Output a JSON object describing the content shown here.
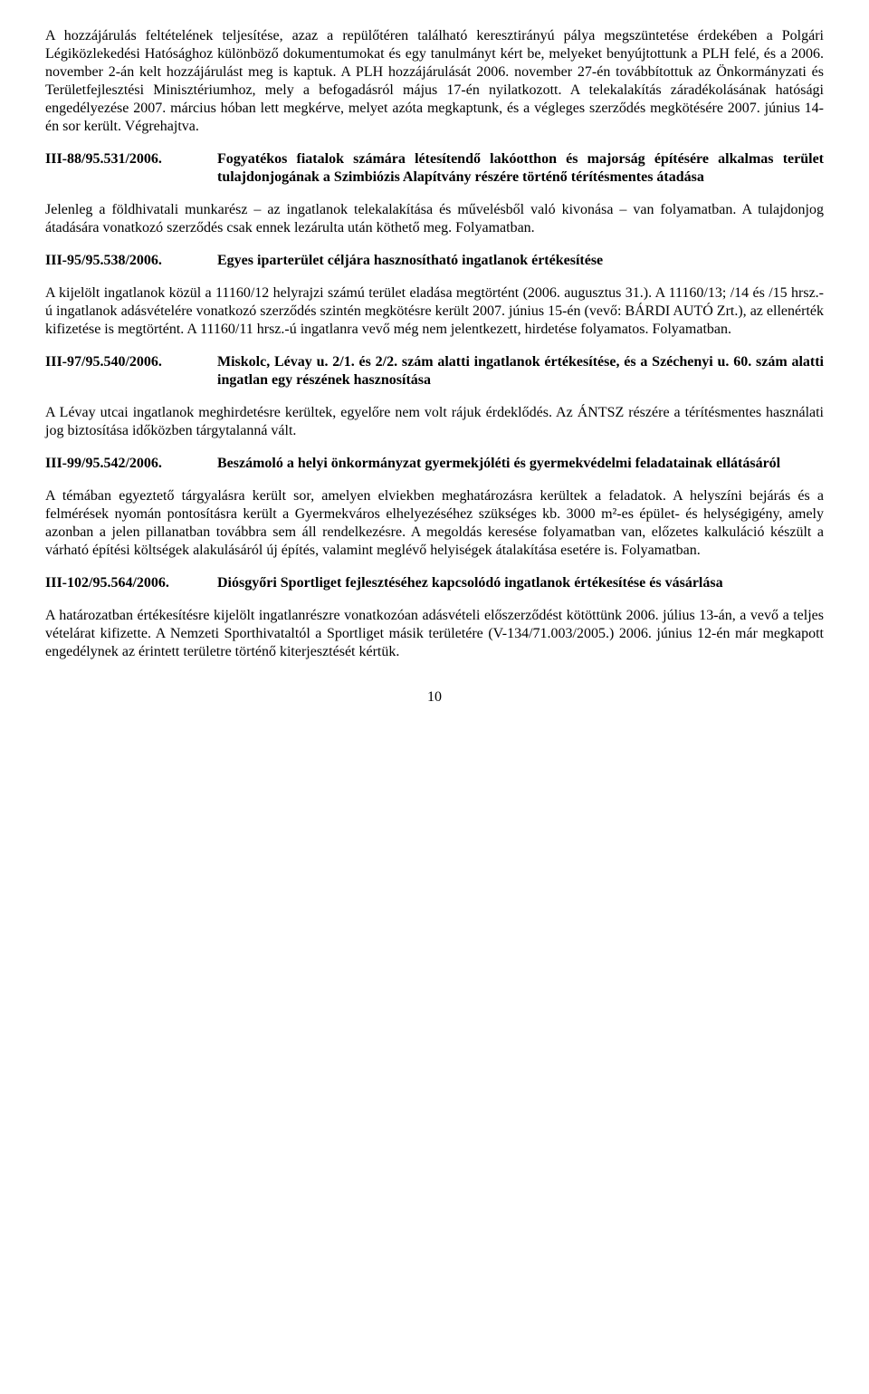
{
  "intro": "A hozzájárulás feltételének teljesítése, azaz a repülőtéren található keresztirányú pálya megszüntetése érdekében a Polgári Légiközlekedési Hatósághoz különböző dokumentumokat és egy tanulmányt kért be, melyeket benyújtottunk a PLH felé, és a 2006. november 2-án kelt hozzájárulást meg is kaptuk. A PLH hozzájárulását 2006. november 27-én továbbítottuk az Önkormányzati és Területfejlesztési Minisztériumhoz, mely a befogadásról május 17-én nyilatkozott. A telekalakítás záradékolásának hatósági engedélyezése 2007. március hóban lett megkérve, melyet azóta megkaptunk, és a végleges szerződés megkötésére 2007. június 14-én sor került. Végrehajtva.",
  "entries": [
    {
      "ref": "III-88/95.531/2006.",
      "title": "Fogyatékos fiatalok számára létesítendő lakóotthon és majorság építésére alkalmas terület tulajdonjogának a Szimbiózis Alapítvány részére történő térítésmentes átadása",
      "body": "Jelenleg a földhivatali munkarész – az ingatlanok telekalakítása és művelésből való kivonása – van folyamatban. A tulajdonjog átadására vonatkozó szerződés csak ennek lezárulta után köthető meg. Folyamatban."
    },
    {
      "ref": "III-95/95.538/2006.",
      "title": "Egyes iparterület céljára hasznosítható ingatlanok értékesítése",
      "body": "A kijelölt ingatlanok közül a 11160/12 helyrajzi számú terület eladása megtörtént (2006. augusztus 31.). A 11160/13; /14 és /15 hrsz.-ú ingatlanok adásvételére vonatkozó szerződés szintén megkötésre került 2007. június 15-én (vevő: BÁRDI AUTÓ Zrt.), az ellenérték kifizetése is megtörtént. A 11160/11 hrsz.-ú ingatlanra vevő még nem jelentkezett, hirdetése folyamatos. Folyamatban."
    },
    {
      "ref": "III-97/95.540/2006.",
      "title": "Miskolc, Lévay u. 2/1. és 2/2. szám alatti ingatlanok értékesítése, és a Széchenyi u. 60. szám alatti ingatlan egy részének hasznosítása",
      "body": "A Lévay utcai ingatlanok meghirdetésre kerültek, egyelőre nem volt rájuk érdeklődés. Az ÁNTSZ részére a térítésmentes használati jog biztosítása időközben tárgytalanná vált."
    },
    {
      "ref": "III-99/95.542/2006.",
      "title": "Beszámoló a helyi önkormányzat gyermekjóléti és gyermekvédelmi feladatainak ellátásáról",
      "body": "A témában egyeztető tárgyalásra került sor, amelyen elviekben meghatározásra kerültek a feladatok. A helyszíni bejárás és a felmérések nyomán pontosításra került a Gyermekváros elhelyezéséhez szükséges kb. 3000 m²-es épület- és helységigény, amely azonban a jelen pillanatban továbbra sem áll rendelkezésre. A megoldás keresése folyamatban van, előzetes kalkuláció készült a várható építési költségek alakulásáról új építés, valamint meglévő helyiségek átalakítása esetére is. Folyamatban."
    },
    {
      "ref": "III-102/95.564/2006.",
      "title": "Diósgyőri Sportliget fejlesztéséhez kapcsolódó ingatlanok értékesítése és vásárlása",
      "body": "A határozatban értékesítésre kijelölt ingatlanrészre vonatkozóan adásvételi előszerződést kötöttünk 2006. július 13-án, a vevő a teljes vételárat kifizette. A Nemzeti Sporthivataltól a Sportliget másik területére (V-134/71.003/2005.) 2006. június 12-én már megkapott engedélynek az érintett területre történő kiterjesztését kértük."
    }
  ],
  "page_number": "10"
}
